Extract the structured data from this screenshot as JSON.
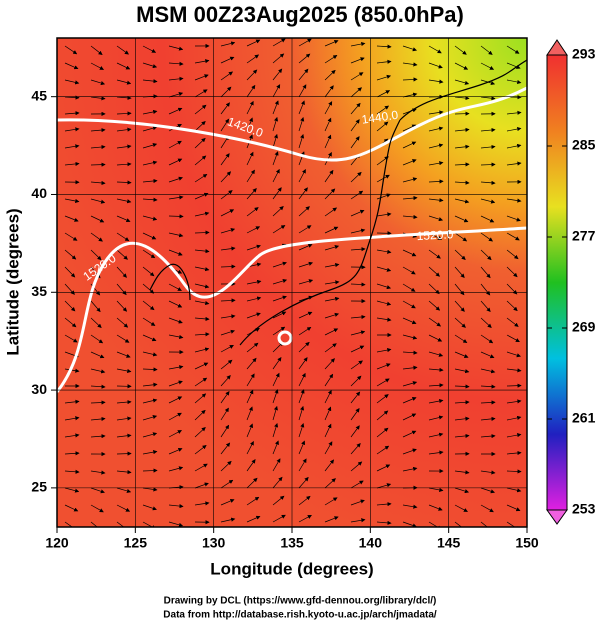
{
  "title": "MSM 00Z23Aug2025 (850.0hPa)",
  "map": {
    "xlabel": "Longitude (degrees)",
    "ylabel": "Latitude  (degrees)",
    "xlim": [
      120,
      150
    ],
    "ylim": [
      23,
      48
    ],
    "xticks": [
      120,
      125,
      130,
      135,
      140,
      145,
      150
    ],
    "yticks": [
      25,
      30,
      35,
      40,
      45
    ],
    "grid": true,
    "contour_labels": [
      "1440.0",
      "1420.0",
      "1520.0",
      "1520.0"
    ]
  },
  "colorbar": {
    "lim": [
      253,
      293
    ],
    "ticks": [
      253,
      261,
      269,
      277,
      285,
      293
    ],
    "colors": [
      "#e020e0",
      "#2020c0",
      "#00c0e0",
      "#20c020",
      "#e8e020",
      "#f08020",
      "#f03030"
    ]
  },
  "footer": [
    "Drawing by DCL (https://www.gfd-dennou.org/library/dcl/)",
    "Data from http://database.rish.kyoto-u.ac.jp/arch/jmadata/"
  ]
}
